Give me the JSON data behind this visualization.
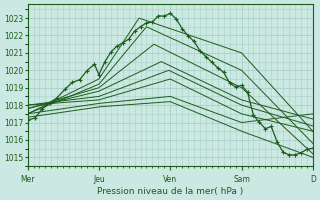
{
  "xlabel": "Pression niveau de la mer( hPa )",
  "ylim": [
    1014.5,
    1023.8
  ],
  "yticks": [
    1015,
    1016,
    1017,
    1018,
    1019,
    1020,
    1021,
    1022,
    1023
  ],
  "xlim": [
    0,
    192
  ],
  "bg_color": "#cce8e2",
  "grid_color": "#a8cfc8",
  "line_color": "#1a5c1a",
  "day_labels": [
    "Mer",
    "Jeu",
    "Ven",
    "Sam",
    "D"
  ],
  "day_positions": [
    0,
    48,
    96,
    144,
    192
  ],
  "ensemble_lines": [
    {
      "control_x": [
        0,
        48,
        75,
        144,
        192
      ],
      "control_y": [
        1017.5,
        1019.5,
        1023.0,
        1021.0,
        1016.5
      ]
    },
    {
      "control_x": [
        0,
        48,
        80,
        144,
        192
      ],
      "control_y": [
        1017.5,
        1019.2,
        1022.5,
        1020.0,
        1015.8
      ]
    },
    {
      "control_x": [
        0,
        48,
        85,
        144,
        192
      ],
      "control_y": [
        1017.8,
        1019.0,
        1021.5,
        1019.0,
        1015.2
      ]
    },
    {
      "control_x": [
        0,
        48,
        90,
        144,
        192
      ],
      "control_y": [
        1017.8,
        1018.8,
        1020.5,
        1018.3,
        1017.2
      ]
    },
    {
      "control_x": [
        0,
        48,
        95,
        144,
        192
      ],
      "control_y": [
        1018.0,
        1018.5,
        1020.0,
        1018.0,
        1016.8
      ]
    },
    {
      "control_x": [
        0,
        48,
        96,
        144,
        192
      ],
      "control_y": [
        1018.0,
        1018.3,
        1019.5,
        1017.5,
        1016.5
      ]
    },
    {
      "control_x": [
        0,
        48,
        96,
        144,
        192
      ],
      "control_y": [
        1017.5,
        1018.1,
        1018.5,
        1017.0,
        1017.5
      ]
    },
    {
      "control_x": [
        0,
        48,
        96,
        144,
        192
      ],
      "control_y": [
        1017.3,
        1017.9,
        1018.2,
        1016.5,
        1015.0
      ]
    }
  ],
  "main_line_x": [
    0,
    5,
    10,
    15,
    20,
    25,
    30,
    35,
    40,
    45,
    48,
    52,
    56,
    60,
    64,
    68,
    72,
    76,
    80,
    84,
    88,
    92,
    96,
    100,
    104,
    108,
    112,
    116,
    120,
    124,
    128,
    132,
    136,
    140,
    144,
    148,
    152,
    156,
    160,
    164,
    168,
    172,
    176,
    180,
    184,
    188,
    192
  ],
  "main_line_y": [
    1017.0,
    1017.3,
    1017.8,
    1018.1,
    1018.5,
    1018.9,
    1019.3,
    1019.6,
    1019.9,
    1020.3,
    1019.8,
    1020.5,
    1021.0,
    1021.4,
    1021.6,
    1021.9,
    1022.2,
    1022.5,
    1022.7,
    1022.9,
    1023.0,
    1023.1,
    1023.3,
    1022.8,
    1022.4,
    1022.1,
    1021.7,
    1021.3,
    1020.7,
    1020.5,
    1020.2,
    1019.8,
    1019.4,
    1019.0,
    1019.3,
    1018.8,
    1017.5,
    1016.9,
    1016.5,
    1016.8,
    1015.8,
    1015.3,
    1015.1,
    1015.2,
    1015.4,
    1015.6,
    1015.5
  ]
}
